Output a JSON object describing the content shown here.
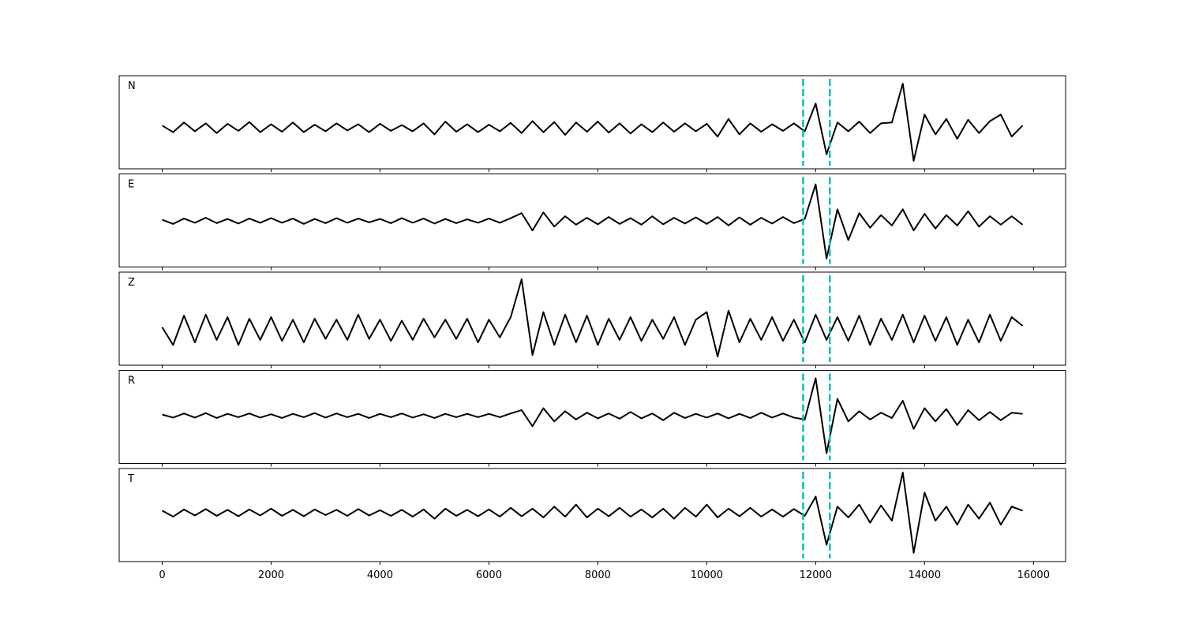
{
  "chart_data": [
    {
      "type": "line",
      "label": "N",
      "color": "#000000",
      "x": [
        0,
        200,
        400,
        600,
        800,
        1000,
        1200,
        1400,
        1600,
        1800,
        2000,
        2200,
        2400,
        2600,
        2800,
        3000,
        3200,
        3400,
        3600,
        3800,
        4000,
        4200,
        4400,
        4600,
        4800,
        5000,
        5200,
        5400,
        5600,
        5800,
        6000,
        6200,
        6400,
        6600,
        6800,
        7000,
        7200,
        7400,
        7600,
        7800,
        8000,
        8200,
        8400,
        8600,
        8800,
        9000,
        9200,
        9400,
        9600,
        9800,
        10000,
        10200,
        10400,
        10600,
        10800,
        11000,
        11200,
        11400,
        11600,
        11800,
        12000,
        12200,
        12400,
        12600,
        12800,
        13000,
        13200,
        13400,
        13600,
        13800,
        14000,
        14200,
        14400,
        14600,
        14800,
        15000,
        15200,
        15400,
        15600,
        15800
      ],
      "values": [
        0.05,
        -0.1,
        0.12,
        -0.08,
        0.1,
        -0.12,
        0.09,
        -0.07,
        0.13,
        -0.1,
        0.08,
        -0.09,
        0.12,
        -0.1,
        0.07,
        -0.08,
        0.1,
        -0.06,
        0.08,
        -0.1,
        0.09,
        -0.07,
        0.06,
        -0.08,
        0.1,
        -0.15,
        0.14,
        -0.09,
        0.08,
        -0.1,
        0.07,
        -0.08,
        0.11,
        -0.12,
        0.15,
        -0.1,
        0.13,
        -0.16,
        0.12,
        -0.09,
        0.14,
        -0.11,
        0.1,
        -0.13,
        0.08,
        -0.1,
        0.12,
        -0.09,
        0.1,
        -0.08,
        0.09,
        -0.2,
        0.2,
        -0.15,
        0.1,
        -0.09,
        0.08,
        -0.07,
        0.1,
        -0.08,
        0.55,
        -0.6,
        0.12,
        -0.08,
        0.14,
        -0.12,
        0.1,
        0.12,
        1.0,
        -0.75,
        0.3,
        -0.15,
        0.2,
        -0.25,
        0.18,
        -0.12,
        0.15,
        0.3,
        -0.2,
        0.05
      ],
      "xlim": [
        -790,
        16590
      ],
      "ylim": [
        -0.93,
        1.18
      ],
      "xticks": [
        0,
        2000,
        4000,
        6000,
        8000,
        10000,
        12000,
        14000,
        16000
      ],
      "show_xtick_labels": false,
      "vlines": [
        {
          "value": 11770,
          "color": "#00bfbf"
        },
        {
          "value": 12260,
          "color": "#00bfbf"
        }
      ]
    },
    {
      "type": "line",
      "label": "E",
      "color": "#000000",
      "x": [
        0,
        200,
        400,
        600,
        800,
        1000,
        1200,
        1400,
        1600,
        1800,
        2000,
        2200,
        2400,
        2600,
        2800,
        3000,
        3200,
        3400,
        3600,
        3800,
        4000,
        4200,
        4400,
        4600,
        4800,
        5000,
        5200,
        5400,
        5600,
        5800,
        6000,
        6200,
        6400,
        6600,
        6800,
        7000,
        7200,
        7400,
        7600,
        7800,
        8000,
        8200,
        8400,
        8600,
        8800,
        9000,
        9200,
        9400,
        9600,
        9800,
        10000,
        10200,
        10400,
        10600,
        10800,
        11000,
        11200,
        11400,
        11600,
        11800,
        12000,
        12200,
        12400,
        12600,
        12800,
        13000,
        13200,
        13400,
        13600,
        13800,
        14000,
        14200,
        14400,
        14600,
        14800,
        15000,
        15200,
        15400,
        15600,
        15800
      ],
      "values": [
        0.03,
        -0.08,
        0.06,
        -0.05,
        0.08,
        -0.06,
        0.05,
        -0.07,
        0.06,
        -0.05,
        0.07,
        -0.05,
        0.06,
        -0.08,
        0.05,
        -0.06,
        0.07,
        -0.05,
        0.06,
        -0.04,
        0.05,
        -0.06,
        0.07,
        -0.05,
        0.06,
        -0.07,
        0.05,
        -0.06,
        0.04,
        -0.05,
        0.06,
        -0.05,
        0.07,
        0.2,
        -0.25,
        0.22,
        -0.15,
        0.12,
        -0.1,
        0.08,
        -0.09,
        0.1,
        -0.08,
        0.07,
        -0.1,
        0.12,
        -0.09,
        0.08,
        -0.07,
        0.09,
        -0.08,
        0.1,
        -0.12,
        0.09,
        -0.1,
        0.08,
        -0.07,
        0.1,
        -0.06,
        0.05,
        0.95,
        -0.98,
        0.3,
        -0.5,
        0.2,
        -0.18,
        0.15,
        -0.12,
        0.3,
        -0.25,
        0.18,
        -0.2,
        0.15,
        -0.12,
        0.25,
        -0.15,
        0.12,
        -0.1,
        0.12,
        -0.1
      ],
      "xlim": [
        -790,
        16590
      ],
      "ylim": [
        -1.2,
        1.22
      ],
      "xticks": [
        0,
        2000,
        4000,
        6000,
        8000,
        10000,
        12000,
        14000,
        16000
      ],
      "show_xtick_labels": false,
      "vlines": [
        {
          "value": 11770,
          "color": "#00bfbf"
        },
        {
          "value": 12260,
          "color": "#00bfbf"
        }
      ]
    },
    {
      "type": "line",
      "label": "Z",
      "color": "#000000",
      "x": [
        0,
        200,
        400,
        600,
        800,
        1000,
        1200,
        1400,
        1600,
        1800,
        2000,
        2200,
        2400,
        2600,
        2800,
        3000,
        3200,
        3400,
        3600,
        3800,
        4000,
        4200,
        4400,
        4600,
        4800,
        5000,
        5200,
        5400,
        5600,
        5800,
        6000,
        6200,
        6400,
        6600,
        6800,
        7000,
        7200,
        7400,
        7600,
        7800,
        8000,
        8200,
        8400,
        8600,
        8800,
        9000,
        9200,
        9400,
        9600,
        9800,
        10000,
        10200,
        10400,
        10600,
        10800,
        11000,
        11200,
        11400,
        11600,
        11800,
        12000,
        12200,
        12400,
        12600,
        12800,
        13000,
        13200,
        13400,
        13600,
        13800,
        14000,
        14200,
        14400,
        14600,
        14800,
        15000,
        15200,
        15400,
        15600,
        15800
      ],
      "values": [
        0.05,
        -0.3,
        0.28,
        -0.25,
        0.3,
        -0.2,
        0.25,
        -0.3,
        0.22,
        -0.2,
        0.25,
        -0.22,
        0.2,
        -0.25,
        0.22,
        -0.18,
        0.2,
        -0.2,
        0.3,
        -0.18,
        0.2,
        -0.22,
        0.18,
        -0.2,
        0.22,
        -0.15,
        0.2,
        -0.18,
        0.22,
        -0.25,
        0.2,
        -0.15,
        0.25,
        1.0,
        -0.5,
        0.35,
        -0.3,
        0.3,
        -0.25,
        0.28,
        -0.3,
        0.22,
        -0.2,
        0.25,
        -0.22,
        0.2,
        -0.18,
        0.25,
        -0.3,
        0.2,
        0.35,
        -0.53,
        0.38,
        -0.25,
        0.22,
        -0.2,
        0.25,
        -0.22,
        0.2,
        -0.25,
        0.3,
        -0.2,
        0.25,
        -0.22,
        0.28,
        -0.3,
        0.22,
        -0.2,
        0.3,
        -0.25,
        0.28,
        -0.22,
        0.25,
        -0.3,
        0.2,
        -0.25,
        0.3,
        -0.22,
        0.25,
        0.08
      ],
      "xlim": [
        -790,
        16590
      ],
      "ylim": [
        -0.7,
        1.14
      ],
      "xticks": [
        0,
        2000,
        4000,
        6000,
        8000,
        10000,
        12000,
        14000,
        16000
      ],
      "show_xtick_labels": false,
      "vlines": [
        {
          "value": 11770,
          "color": "#00bfbf"
        },
        {
          "value": 12260,
          "color": "#00bfbf"
        }
      ]
    },
    {
      "type": "line",
      "label": "R",
      "color": "#000000",
      "x": [
        0,
        200,
        400,
        600,
        800,
        1000,
        1200,
        1400,
        1600,
        1800,
        2000,
        2200,
        2400,
        2600,
        2800,
        3000,
        3200,
        3400,
        3600,
        3800,
        4000,
        4200,
        4400,
        4600,
        4800,
        5000,
        5200,
        5400,
        5600,
        5800,
        6000,
        6200,
        6400,
        6600,
        6800,
        7000,
        7200,
        7400,
        7600,
        7800,
        8000,
        8200,
        8400,
        8600,
        8800,
        9000,
        9200,
        9400,
        9600,
        9800,
        10000,
        10200,
        10400,
        10600,
        10800,
        11000,
        11200,
        11400,
        11600,
        11800,
        12000,
        12200,
        12400,
        12600,
        12800,
        13000,
        13200,
        13400,
        13600,
        13800,
        14000,
        14200,
        14400,
        14600,
        14800,
        15000,
        15200,
        15400,
        15600,
        15800
      ],
      "values": [
        0.03,
        -0.05,
        0.06,
        -0.05,
        0.07,
        -0.06,
        0.05,
        -0.04,
        0.06,
        -0.05,
        0.04,
        -0.06,
        0.05,
        -0.04,
        0.07,
        -0.05,
        0.06,
        -0.04,
        0.05,
        -0.06,
        0.05,
        -0.04,
        0.06,
        -0.05,
        0.04,
        -0.06,
        0.05,
        -0.04,
        0.05,
        -0.04,
        0.05,
        -0.04,
        0.06,
        0.15,
        -0.28,
        0.2,
        -0.15,
        0.12,
        -0.1,
        0.08,
        -0.07,
        0.06,
        -0.08,
        0.1,
        -0.07,
        0.06,
        -0.12,
        0.08,
        -0.06,
        0.05,
        -0.05,
        0.06,
        -0.07,
        0.05,
        -0.06,
        0.08,
        -0.05,
        0.06,
        -0.05,
        -0.1,
        1.0,
        -1.0,
        0.45,
        -0.15,
        0.12,
        -0.1,
        0.08,
        -0.06,
        0.4,
        -0.35,
        0.2,
        -0.15,
        0.18,
        -0.25,
        0.15,
        -0.12,
        0.1,
        -0.12,
        0.08,
        0.05
      ],
      "xlim": [
        -790,
        16590
      ],
      "ylim": [
        -1.27,
        1.21
      ],
      "xticks": [
        0,
        2000,
        4000,
        6000,
        8000,
        10000,
        12000,
        14000,
        16000
      ],
      "show_xtick_labels": false,
      "vlines": [
        {
          "value": 11770,
          "color": "#00bfbf"
        },
        {
          "value": 12260,
          "color": "#00bfbf"
        }
      ]
    },
    {
      "type": "line",
      "label": "T",
      "color": "#000000",
      "x": [
        0,
        200,
        400,
        600,
        800,
        1000,
        1200,
        1400,
        1600,
        1800,
        2000,
        2200,
        2400,
        2600,
        2800,
        3000,
        3200,
        3400,
        3600,
        3800,
        4000,
        4200,
        4400,
        4600,
        4800,
        5000,
        5200,
        5400,
        5600,
        5800,
        6000,
        6200,
        6400,
        6600,
        6800,
        7000,
        7200,
        7400,
        7600,
        7800,
        8000,
        8200,
        8400,
        8600,
        8800,
        9000,
        9200,
        9400,
        9600,
        9800,
        10000,
        10200,
        10400,
        10600,
        10800,
        11000,
        11200,
        11400,
        11600,
        11800,
        12000,
        12200,
        12400,
        12600,
        12800,
        13000,
        13200,
        13400,
        13600,
        13800,
        14000,
        14200,
        14400,
        14600,
        14800,
        15000,
        15200,
        15400,
        15600,
        15800
      ],
      "values": [
        0.05,
        -0.1,
        0.08,
        -0.07,
        0.09,
        -0.08,
        0.07,
        -0.09,
        0.08,
        -0.07,
        0.1,
        -0.08,
        0.07,
        -0.09,
        0.08,
        -0.06,
        0.07,
        -0.08,
        0.09,
        -0.07,
        0.06,
        -0.08,
        0.07,
        -0.1,
        0.08,
        -0.15,
        0.1,
        -0.08,
        0.07,
        -0.09,
        0.08,
        -0.1,
        0.12,
        -0.09,
        0.1,
        -0.12,
        0.15,
        -0.1,
        0.2,
        -0.12,
        0.1,
        -0.09,
        0.12,
        -0.1,
        0.08,
        -0.12,
        0.1,
        -0.15,
        0.12,
        -0.1,
        0.2,
        -0.12,
        0.1,
        -0.09,
        0.12,
        -0.1,
        0.08,
        -0.1,
        0.09,
        -0.08,
        0.4,
        -0.8,
        0.15,
        -0.12,
        0.2,
        -0.25,
        0.18,
        -0.2,
        1.0,
        -1.0,
        0.5,
        -0.2,
        0.15,
        -0.3,
        0.2,
        -0.15,
        0.25,
        -0.3,
        0.15,
        0.05
      ],
      "xlim": [
        -790,
        16590
      ],
      "ylim": [
        -1.22,
        1.1
      ],
      "xticks": [
        0,
        2000,
        4000,
        6000,
        8000,
        10000,
        12000,
        14000,
        16000
      ],
      "show_xtick_labels": true,
      "vlines": [
        {
          "value": 11770,
          "color": "#00bfbf"
        },
        {
          "value": 12260,
          "color": "#00bfbf"
        }
      ]
    }
  ]
}
